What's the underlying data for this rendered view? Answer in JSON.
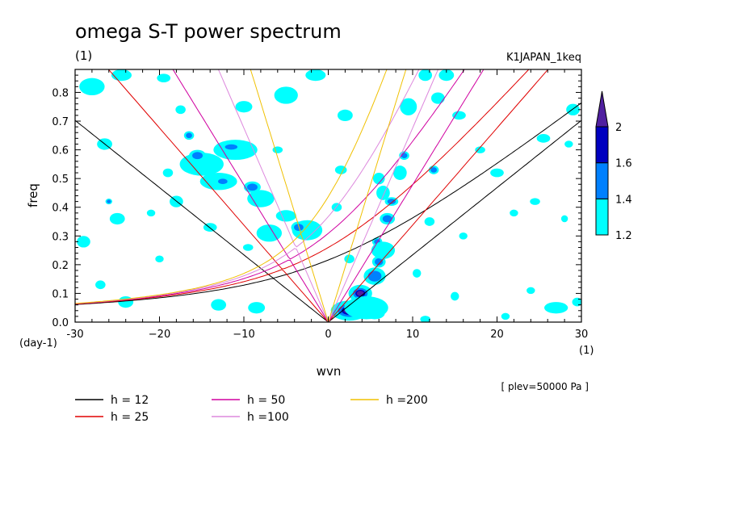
{
  "chart_data": {
    "type": "heatmap",
    "title": "omega S-T power spectrum",
    "subtitle": "(1)",
    "experiment": "K1JAPAN_1keq",
    "xlabel": "wvn",
    "ylabel": "freq",
    "x_unit_label": "(1)",
    "y_unit_label": "(day-1)",
    "xlim": [
      -30,
      30
    ],
    "ylim": [
      0,
      0.88
    ],
    "x_ticks": [
      {
        "value": -30,
        "label": "-30"
      },
      {
        "value": -20,
        "label": "−20"
      },
      {
        "value": -10,
        "label": "−10"
      },
      {
        "value": 0,
        "label": "0"
      },
      {
        "value": 10,
        "label": "10"
      },
      {
        "value": 20,
        "label": "20"
      },
      {
        "value": 30,
        "label": "30"
      }
    ],
    "y_ticks": [
      {
        "value": 0.0,
        "label": "0.0"
      },
      {
        "value": 0.1,
        "label": "0.1"
      },
      {
        "value": 0.2,
        "label": "0.2"
      },
      {
        "value": 0.3,
        "label": "0.3"
      },
      {
        "value": 0.4,
        "label": "0.4"
      },
      {
        "value": 0.5,
        "label": "0.5"
      },
      {
        "value": 0.6,
        "label": "0.6"
      },
      {
        "value": 0.7,
        "label": "0.7"
      },
      {
        "value": 0.8,
        "label": "0.8"
      }
    ],
    "annotation": "[ plev=50000 Pa ]",
    "colorbar": {
      "levels": [
        1.2,
        1.4,
        1.6,
        2
      ],
      "labels": [
        "1.2",
        "1.4",
        "1.6",
        "2"
      ],
      "colors": [
        "#00ffff",
        "#0080ff",
        "#0000c0",
        "#5020a0"
      ]
    },
    "dispersion_curves": [
      {
        "name": "h = 12",
        "h": 12,
        "color": "#000000"
      },
      {
        "name": "h = 25",
        "h": 25,
        "color": "#e00000"
      },
      {
        "name": "h = 50",
        "h": 50,
        "color": "#d000a0"
      },
      {
        "name": "h =100",
        "h": 100,
        "color": "#dd88dd"
      },
      {
        "name": "h =200",
        "h": 200,
        "color": "#f0c000"
      }
    ],
    "power_patches": [
      {
        "k": 2.5,
        "f": 0.04,
        "rk": 2.2,
        "rf": 0.035,
        "level": 3
      },
      {
        "k": 3.8,
        "f": 0.1,
        "rk": 1.4,
        "rf": 0.03,
        "level": 3
      },
      {
        "k": 5.5,
        "f": 0.03,
        "rk": 1.2,
        "rf": 0.02,
        "level": 3
      },
      {
        "k": 4.5,
        "f": 0.05,
        "rk": 2.6,
        "rf": 0.04,
        "level": 1
      },
      {
        "k": 5.5,
        "f": 0.16,
        "rk": 1.3,
        "rf": 0.03,
        "level": 2
      },
      {
        "k": 6.0,
        "f": 0.21,
        "rk": 0.8,
        "rf": 0.02,
        "level": 2
      },
      {
        "k": 7.0,
        "f": 0.36,
        "rk": 0.9,
        "rf": 0.02,
        "level": 2
      },
      {
        "k": 5.8,
        "f": 0.28,
        "rk": 0.6,
        "rf": 0.015,
        "level": 2
      },
      {
        "k": 6.5,
        "f": 0.25,
        "rk": 1.4,
        "rf": 0.03,
        "level": 1
      },
      {
        "k": 6.5,
        "f": 0.45,
        "rk": 0.8,
        "rf": 0.025,
        "level": 1
      },
      {
        "k": 7.5,
        "f": 0.42,
        "rk": 0.8,
        "rf": 0.015,
        "level": 2
      },
      {
        "k": 6.0,
        "f": 0.5,
        "rk": 0.7,
        "rf": 0.02,
        "level": 1
      },
      {
        "k": 8.5,
        "f": 0.52,
        "rk": 0.8,
        "rf": 0.025,
        "level": 1
      },
      {
        "k": 9.0,
        "f": 0.58,
        "rk": 0.6,
        "rf": 0.015,
        "level": 2
      },
      {
        "k": 13.0,
        "f": 0.78,
        "rk": 0.8,
        "rf": 0.02,
        "level": 1
      },
      {
        "k": 12.5,
        "f": 0.53,
        "rk": 0.6,
        "rf": 0.015,
        "level": 2
      },
      {
        "k": 12.0,
        "f": 0.35,
        "rk": 0.6,
        "rf": 0.015,
        "level": 1
      },
      {
        "k": -15.0,
        "f": 0.55,
        "rk": 2.6,
        "rf": 0.04,
        "level": 1
      },
      {
        "k": -15.5,
        "f": 0.58,
        "rk": 1.0,
        "rf": 0.02,
        "level": 2
      },
      {
        "k": -11.0,
        "f": 0.6,
        "rk": 2.6,
        "rf": 0.035,
        "level": 1
      },
      {
        "k": -11.5,
        "f": 0.61,
        "rk": 1.2,
        "rf": 0.015,
        "level": 2
      },
      {
        "k": -13.0,
        "f": 0.49,
        "rk": 2.2,
        "rf": 0.03,
        "level": 1
      },
      {
        "k": -12.5,
        "f": 0.49,
        "rk": 0.9,
        "rf": 0.015,
        "level": 2
      },
      {
        "k": -9.0,
        "f": 0.47,
        "rk": 1.0,
        "rf": 0.02,
        "level": 2
      },
      {
        "k": -8.0,
        "f": 0.43,
        "rk": 1.6,
        "rf": 0.03,
        "level": 1
      },
      {
        "k": -2.5,
        "f": 0.32,
        "rk": 1.8,
        "rf": 0.035,
        "level": 1
      },
      {
        "k": -3.5,
        "f": 0.33,
        "rk": 0.9,
        "rf": 0.02,
        "level": 2
      },
      {
        "k": -7.0,
        "f": 0.31,
        "rk": 1.5,
        "rf": 0.03,
        "level": 1
      },
      {
        "k": -5.0,
        "f": 0.37,
        "rk": 1.2,
        "rf": 0.02,
        "level": 1
      },
      {
        "k": -16.5,
        "f": 0.65,
        "rk": 0.6,
        "rf": 0.015,
        "level": 2
      },
      {
        "k": -19.0,
        "f": 0.52,
        "rk": 0.6,
        "rf": 0.015,
        "level": 1
      },
      {
        "k": -18.0,
        "f": 0.42,
        "rk": 0.8,
        "rf": 0.02,
        "level": 1
      },
      {
        "k": -21.0,
        "f": 0.38,
        "rk": 0.5,
        "rf": 0.012,
        "level": 1
      },
      {
        "k": -26.0,
        "f": 0.42,
        "rk": 0.4,
        "rf": 0.01,
        "level": 2
      },
      {
        "k": -25.0,
        "f": 0.36,
        "rk": 0.9,
        "rf": 0.02,
        "level": 1
      },
      {
        "k": -24.5,
        "f": 0.86,
        "rk": 1.2,
        "rf": 0.02,
        "level": 1
      },
      {
        "k": -19.5,
        "f": 0.85,
        "rk": 0.8,
        "rf": 0.015,
        "level": 1
      },
      {
        "k": -28.0,
        "f": 0.82,
        "rk": 1.5,
        "rf": 0.03,
        "level": 1
      },
      {
        "k": -26.5,
        "f": 0.62,
        "rk": 0.9,
        "rf": 0.02,
        "level": 1
      },
      {
        "k": -29.0,
        "f": 0.28,
        "rk": 0.8,
        "rf": 0.02,
        "level": 1
      },
      {
        "k": -27.0,
        "f": 0.13,
        "rk": 0.6,
        "rf": 0.015,
        "level": 1
      },
      {
        "k": -24.0,
        "f": 0.07,
        "rk": 0.9,
        "rf": 0.02,
        "level": 1
      },
      {
        "k": -13.0,
        "f": 0.06,
        "rk": 0.9,
        "rf": 0.02,
        "level": 1
      },
      {
        "k": -8.5,
        "f": 0.05,
        "rk": 1.0,
        "rf": 0.02,
        "level": 1
      },
      {
        "k": -20.0,
        "f": 0.22,
        "rk": 0.5,
        "rf": 0.012,
        "level": 1
      },
      {
        "k": -14.0,
        "f": 0.33,
        "rk": 0.8,
        "rf": 0.015,
        "level": 1
      },
      {
        "k": -9.5,
        "f": 0.26,
        "rk": 0.6,
        "rf": 0.012,
        "level": 1
      },
      {
        "k": -10.0,
        "f": 0.75,
        "rk": 1.0,
        "rf": 0.02,
        "level": 1
      },
      {
        "k": -5.0,
        "f": 0.79,
        "rk": 1.4,
        "rf": 0.03,
        "level": 1
      },
      {
        "k": -1.5,
        "f": 0.86,
        "rk": 1.2,
        "rf": 0.02,
        "level": 1
      },
      {
        "k": 2.0,
        "f": 0.72,
        "rk": 0.9,
        "rf": 0.02,
        "level": 1
      },
      {
        "k": 1.5,
        "f": 0.53,
        "rk": 0.7,
        "rf": 0.015,
        "level": 1
      },
      {
        "k": 1.0,
        "f": 0.4,
        "rk": 0.6,
        "rf": 0.015,
        "level": 1
      },
      {
        "k": 2.5,
        "f": 0.22,
        "rk": 0.6,
        "rf": 0.015,
        "level": 1
      },
      {
        "k": 9.5,
        "f": 0.75,
        "rk": 1.0,
        "rf": 0.03,
        "level": 1
      },
      {
        "k": 10.5,
        "f": 0.17,
        "rk": 0.5,
        "rf": 0.015,
        "level": 1
      },
      {
        "k": 15.5,
        "f": 0.72,
        "rk": 0.8,
        "rf": 0.015,
        "level": 1
      },
      {
        "k": 18.0,
        "f": 0.6,
        "rk": 0.6,
        "rf": 0.012,
        "level": 1
      },
      {
        "k": 16.0,
        "f": 0.3,
        "rk": 0.5,
        "rf": 0.012,
        "level": 1
      },
      {
        "k": 20.0,
        "f": 0.52,
        "rk": 0.8,
        "rf": 0.015,
        "level": 1
      },
      {
        "k": 22.0,
        "f": 0.38,
        "rk": 0.5,
        "rf": 0.012,
        "level": 1
      },
      {
        "k": 24.5,
        "f": 0.42,
        "rk": 0.6,
        "rf": 0.012,
        "level": 1
      },
      {
        "k": 25.5,
        "f": 0.64,
        "rk": 0.8,
        "rf": 0.015,
        "level": 1
      },
      {
        "k": 28.5,
        "f": 0.62,
        "rk": 0.5,
        "rf": 0.012,
        "level": 1
      },
      {
        "k": 29.0,
        "f": 0.74,
        "rk": 0.8,
        "rf": 0.02,
        "level": 1
      },
      {
        "k": 28.0,
        "f": 0.36,
        "rk": 0.4,
        "rf": 0.012,
        "level": 1
      },
      {
        "k": 27.0,
        "f": 0.05,
        "rk": 1.4,
        "rf": 0.02,
        "level": 1
      },
      {
        "k": 29.5,
        "f": 0.07,
        "rk": 0.6,
        "rf": 0.015,
        "level": 1
      },
      {
        "k": 24.0,
        "f": 0.11,
        "rk": 0.5,
        "rf": 0.012,
        "level": 1
      },
      {
        "k": 21.0,
        "f": 0.02,
        "rk": 0.5,
        "rf": 0.012,
        "level": 1
      },
      {
        "k": 15.0,
        "f": 0.09,
        "rk": 0.5,
        "rf": 0.015,
        "level": 1
      },
      {
        "k": 11.5,
        "f": 0.01,
        "rk": 0.6,
        "rf": 0.012,
        "level": 1
      },
      {
        "k": 14.0,
        "f": 0.86,
        "rk": 0.9,
        "rf": 0.02,
        "level": 1
      },
      {
        "k": 11.5,
        "f": 0.86,
        "rk": 0.8,
        "rf": 0.02,
        "level": 1
      },
      {
        "k": -17.5,
        "f": 0.74,
        "rk": 0.6,
        "rf": 0.015,
        "level": 1
      },
      {
        "k": -6.0,
        "f": 0.6,
        "rk": 0.6,
        "rf": 0.012,
        "level": 1
      }
    ]
  }
}
